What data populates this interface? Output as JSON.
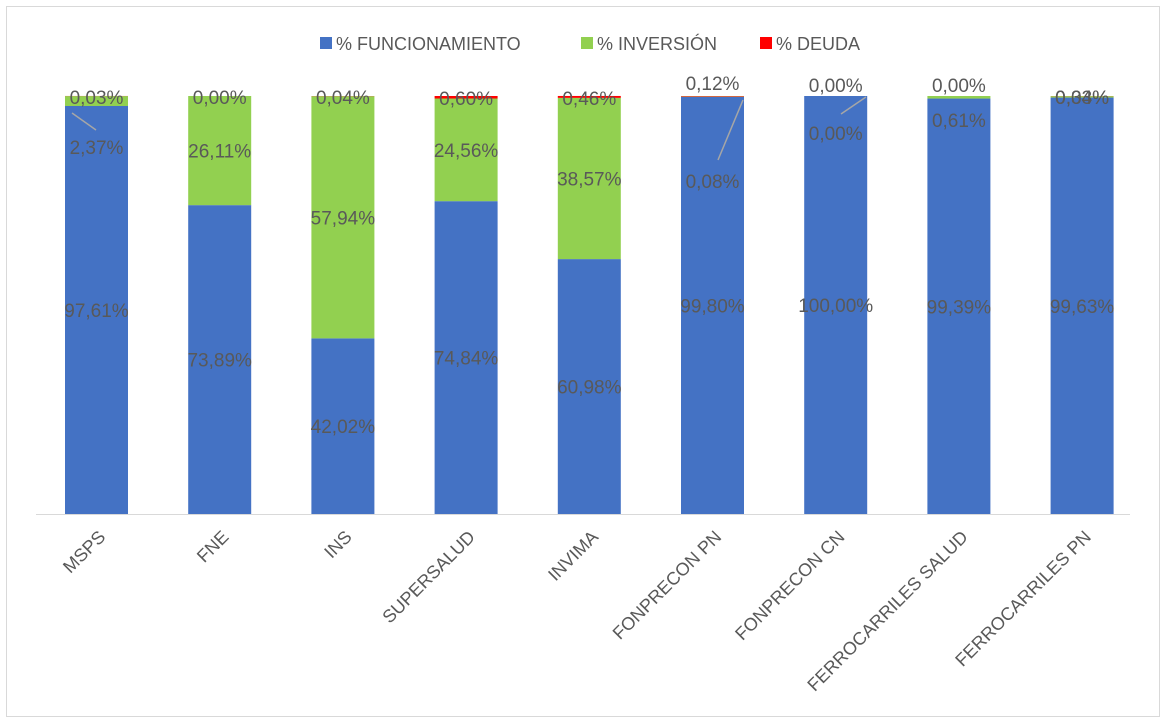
{
  "chart_data": {
    "type": "bar",
    "stacked": true,
    "percent_stacked": true,
    "categories": [
      "MSPS",
      "FNE",
      "INS",
      "SUPERSALUD",
      "INVIMA",
      "FONPRECON PN",
      "FONPRECON CN",
      "FERROCARRILES SALUD",
      "FERROCARRILES PN"
    ],
    "series": [
      {
        "name": "% FUNCIONAMIENTO",
        "color": "#4472c4",
        "values": [
          97.61,
          73.89,
          42.02,
          74.84,
          60.98,
          99.8,
          100.0,
          99.39,
          99.63
        ],
        "labels": [
          "97,61%",
          "73,89%",
          "42,02%",
          "74,84%",
          "60,98%",
          "99,80%",
          "100,00%",
          "99,39%",
          "99,63%"
        ]
      },
      {
        "name": "% INVERSIÓN",
        "color": "#92d050",
        "values": [
          2.37,
          26.11,
          57.94,
          24.56,
          38.57,
          0.08,
          0.0,
          0.61,
          0.34
        ],
        "labels": [
          "2,37%",
          "26,11%",
          "57,94%",
          "24,56%",
          "38,57%",
          "0,08%",
          "0,00%",
          "0,61%",
          "0,34%"
        ]
      },
      {
        "name": "% DEUDA",
        "color": "#ff0000",
        "values": [
          0.03,
          0.0,
          0.04,
          0.6,
          0.46,
          0.12,
          0.0,
          0.0,
          0.03
        ],
        "labels": [
          "0,03%",
          "0,00%",
          "0,04%",
          "0,60%",
          "0,46%",
          "0,12%",
          "0,00%",
          "0,00%",
          "0,03%"
        ]
      }
    ],
    "ylim": [
      0,
      100
    ],
    "legend_position": "top",
    "grid": false,
    "xlabel": "",
    "ylabel": ""
  }
}
